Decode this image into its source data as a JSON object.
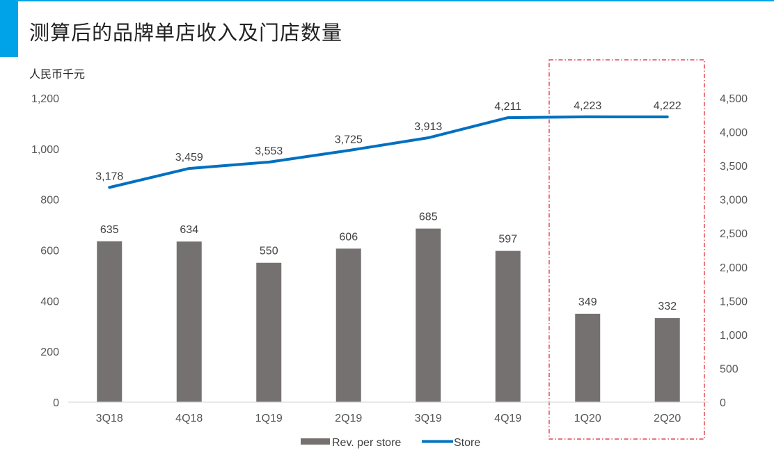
{
  "header": {
    "title": "测算后的品牌单店收入及门店数量"
  },
  "chart_data": {
    "type": "bar",
    "title": "测算后的品牌单店收入及门店数量",
    "categories": [
      "3Q18",
      "4Q18",
      "1Q19",
      "2Q19",
      "3Q19",
      "4Q19",
      "1Q20",
      "2Q20"
    ],
    "ylabel": "人民币千元",
    "ylim": [
      0,
      1200
    ],
    "y_ticks": [
      "0",
      "200",
      "400",
      "600",
      "800",
      "1,000",
      "1,200"
    ],
    "y2lim": [
      0,
      4500
    ],
    "y2_ticks": [
      "0",
      "500",
      "1,000",
      "1,500",
      "2,000",
      "2,500",
      "3,000",
      "3,500",
      "4,000",
      "4,500"
    ],
    "grid": false,
    "legend_position": "bottom",
    "series": [
      {
        "name": "Rev. per store",
        "type": "bar",
        "axis": "left",
        "color": "#767171",
        "values": [
          635,
          634,
          550,
          606,
          685,
          597,
          349,
          332
        ],
        "labels": [
          "635",
          "634",
          "550",
          "606",
          "685",
          "597",
          "349",
          "332"
        ]
      },
      {
        "name": "Store",
        "type": "line",
        "axis": "right",
        "color": "#0070c0",
        "values": [
          3178,
          3459,
          3553,
          3725,
          3913,
          4211,
          4223,
          4222
        ],
        "labels": [
          "3,178",
          "3,459",
          "3,553",
          "3,725",
          "3,913",
          "4,211",
          "4,223",
          "4,222"
        ]
      }
    ],
    "highlight": {
      "categories": [
        "1Q20",
        "2Q20"
      ],
      "color": "#e0202a",
      "style": "dash-dot"
    }
  }
}
